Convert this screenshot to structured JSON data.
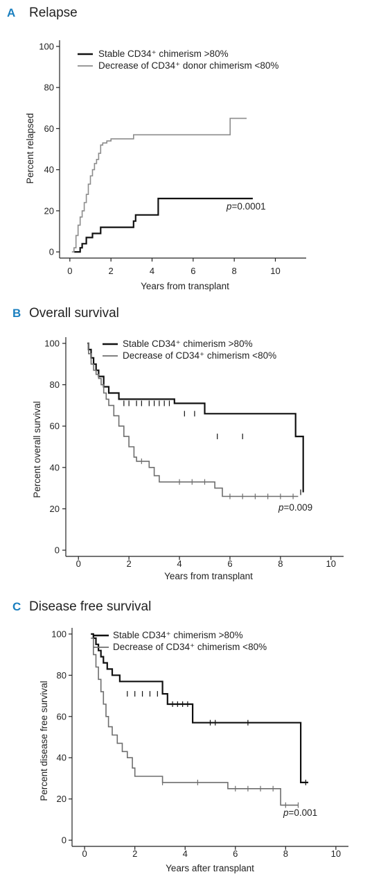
{
  "chart_data": [
    {
      "type": "line",
      "panel": "A",
      "title": "Relapse",
      "xlabel": "Years from transplant",
      "ylabel": "Percent relapsed",
      "xlim": [
        -0.5,
        11.5
      ],
      "ylim": [
        -3,
        103
      ],
      "xticks": [
        0,
        2,
        4,
        6,
        8,
        10
      ],
      "yticks": [
        0,
        20,
        40,
        60,
        80,
        100
      ],
      "annotation": {
        "p_label": "p",
        "value": "=0.0001"
      },
      "series": [
        {
          "name": "Stable CD34⁺ chimerism >80%",
          "color": "#111111",
          "x": [
            0.2,
            0.35,
            0.5,
            0.6,
            0.8,
            1.1,
            1.5,
            2.2,
            3.1,
            3.2,
            4.3,
            8.9
          ],
          "y": [
            0,
            0,
            2,
            4,
            7,
            9,
            12,
            12,
            15,
            18,
            26,
            26
          ],
          "censored": []
        },
        {
          "name": "Decrease of CD34⁺ donor chimerism <80%",
          "color": "#8c8c8c",
          "x": [
            0.1,
            0.2,
            0.3,
            0.4,
            0.5,
            0.6,
            0.7,
            0.8,
            0.9,
            1.0,
            1.1,
            1.2,
            1.3,
            1.4,
            1.5,
            1.6,
            1.8,
            2.0,
            3.1,
            7.8,
            8.6
          ],
          "y": [
            0,
            2,
            8,
            13,
            17,
            20,
            24,
            28,
            33,
            37,
            40,
            43,
            45,
            48,
            52,
            53,
            54,
            55,
            57,
            65,
            65
          ],
          "censored": []
        }
      ]
    },
    {
      "type": "line",
      "panel": "B",
      "title": "Overall survival",
      "xlabel": "Years from transplant",
      "ylabel": "Percent overall survival",
      "xlim": [
        -0.5,
        10.5
      ],
      "ylim": [
        -3,
        103
      ],
      "xticks": [
        0,
        2,
        4,
        6,
        8,
        10
      ],
      "yticks": [
        0,
        20,
        40,
        60,
        80,
        100
      ],
      "annotation": {
        "p_label": "p",
        "value": "=0.009"
      },
      "series": [
        {
          "name": "Stable CD34⁺ chimerism >80%",
          "color": "#111111",
          "x": [
            0.35,
            0.4,
            0.5,
            0.6,
            0.7,
            0.8,
            1.0,
            1.2,
            1.6,
            3.8,
            5.0,
            8.6,
            8.9
          ],
          "y": [
            100,
            97,
            93,
            90,
            87,
            84,
            79,
            76,
            73,
            71,
            66,
            55,
            28
          ],
          "censored": [
            [
              1.8,
              71
            ],
            [
              2.0,
              71
            ],
            [
              2.3,
              71
            ],
            [
              2.5,
              71
            ],
            [
              2.8,
              71
            ],
            [
              3.0,
              71
            ],
            [
              3.2,
              71
            ],
            [
              3.4,
              71
            ],
            [
              3.6,
              71
            ],
            [
              4.2,
              66
            ],
            [
              4.6,
              66
            ],
            [
              5.5,
              55
            ],
            [
              6.5,
              55
            ],
            [
              8.8,
              28
            ]
          ]
        },
        {
          "name": "Decrease of CD34⁺ chimerism <80%",
          "color": "#6e6e6e",
          "x": [
            0.35,
            0.4,
            0.5,
            0.6,
            0.7,
            0.8,
            0.9,
            1.0,
            1.1,
            1.2,
            1.4,
            1.6,
            1.8,
            2.0,
            2.2,
            2.3,
            2.8,
            3.0,
            3.2,
            5.4,
            5.7,
            8.7
          ],
          "y": [
            100,
            95,
            90,
            87,
            85,
            83,
            80,
            76,
            73,
            70,
            65,
            60,
            55,
            50,
            45,
            43,
            40,
            36,
            33,
            30,
            26,
            26
          ],
          "censored": [
            [
              2.5,
              43
            ],
            [
              4.0,
              33
            ],
            [
              4.5,
              33
            ],
            [
              5.0,
              33
            ],
            [
              6.0,
              26
            ],
            [
              6.5,
              26
            ],
            [
              7.0,
              26
            ],
            [
              7.5,
              26
            ],
            [
              8.0,
              26
            ],
            [
              8.5,
              26
            ]
          ]
        }
      ]
    },
    {
      "type": "line",
      "panel": "C",
      "title": "Disease free survival",
      "xlabel": "Years after transplant",
      "ylabel": "Percent disease free survival",
      "xlim": [
        -0.5,
        10.5
      ],
      "ylim": [
        -3,
        103
      ],
      "xticks": [
        0,
        2,
        4,
        6,
        8,
        10
      ],
      "yticks": [
        0,
        20,
        40,
        60,
        80,
        100
      ],
      "annotation": {
        "p_label": "p",
        "value": "=0.001"
      },
      "series": [
        {
          "name": "Stable CD34⁺ chimerism >80%",
          "color": "#111111",
          "x": [
            0.25,
            0.35,
            0.45,
            0.55,
            0.65,
            0.75,
            0.9,
            1.1,
            1.4,
            3.1,
            3.3,
            4.3,
            8.6,
            8.9
          ],
          "y": [
            100,
            98,
            95,
            92,
            89,
            86,
            83,
            80,
            77,
            71,
            66,
            57,
            28,
            28
          ],
          "censored": [
            [
              1.7,
              71
            ],
            [
              2.0,
              71
            ],
            [
              2.3,
              71
            ],
            [
              2.6,
              71
            ],
            [
              2.9,
              71
            ],
            [
              3.5,
              66
            ],
            [
              3.7,
              66
            ],
            [
              3.9,
              66
            ],
            [
              4.1,
              66
            ],
            [
              5.0,
              57
            ],
            [
              5.2,
              57
            ],
            [
              6.5,
              57
            ],
            [
              8.8,
              28
            ]
          ]
        },
        {
          "name": "Decrease of CD34⁺ chimerism <80%",
          "color": "#6e6e6e",
          "x": [
            0.25,
            0.35,
            0.45,
            0.55,
            0.65,
            0.75,
            0.85,
            0.95,
            1.1,
            1.3,
            1.5,
            1.7,
            1.9,
            2.0,
            3.1,
            5.7,
            7.8,
            8.5
          ],
          "y": [
            98,
            90,
            84,
            78,
            72,
            66,
            60,
            55,
            51,
            47,
            43,
            40,
            35,
            31,
            28,
            25,
            17,
            17
          ],
          "censored": [
            [
              3.1,
              28
            ],
            [
              4.5,
              28
            ],
            [
              6.0,
              25
            ],
            [
              6.5,
              25
            ],
            [
              7.0,
              25
            ],
            [
              7.5,
              25
            ],
            [
              8.0,
              17
            ],
            [
              8.5,
              17
            ]
          ]
        }
      ]
    }
  ]
}
